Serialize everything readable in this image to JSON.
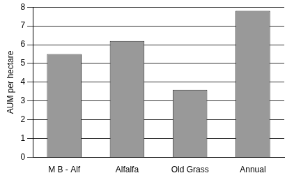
{
  "chart_data": {
    "type": "bar",
    "ylabel": "AUM per hectare",
    "categories": [
      "M B - Alf",
      "Alfalfa",
      "Old Grass",
      "Annual"
    ],
    "values": [
      5.5,
      6.2,
      3.6,
      7.8
    ],
    "color": "#999999",
    "ylim": [
      0,
      8
    ],
    "yticks": [
      0,
      1,
      2,
      3,
      4,
      5,
      6,
      7,
      8
    ],
    "grid": true
  }
}
